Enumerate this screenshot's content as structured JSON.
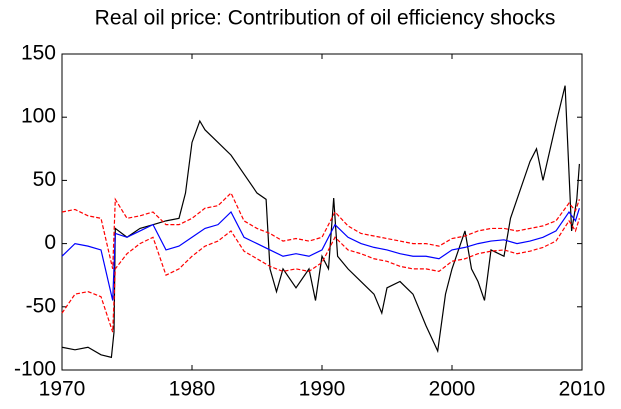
{
  "chart_data": {
    "type": "line",
    "title": "Real oil price: Contribution of oil efficiency shocks",
    "xlim": [
      1970,
      2010
    ],
    "xticks": [
      1970,
      1980,
      1990,
      2000,
      2010
    ],
    "ylim": [
      -100,
      150
    ],
    "yticks": [
      -100,
      -50,
      0,
      50,
      100,
      150
    ],
    "series": [
      {
        "color": "#000000",
        "dash": "solid",
        "x": [
          1970,
          1971,
          1972,
          1973,
          1973.8,
          1974,
          1974.1,
          1975,
          1976,
          1977,
          1978,
          1979,
          1979.5,
          1980,
          1980.6,
          1981,
          1982,
          1983,
          1984,
          1985,
          1985.7,
          1986,
          1986.5,
          1987,
          1988,
          1989,
          1989.5,
          1990,
          1990.5,
          1990.9,
          1991.2,
          1992,
          1993,
          1994,
          1994.6,
          1995,
          1996,
          1997,
          1998,
          1998.9,
          1999.5,
          2000,
          2001,
          2001.5,
          2002,
          2002.5,
          2003,
          2004,
          2004.5,
          2005,
          2006,
          2006.5,
          2007,
          2008,
          2008.7,
          2009.2,
          2009.6,
          2009.8
        ],
        "values": [
          -82,
          -84,
          -82,
          -88,
          -90,
          -70,
          12,
          5,
          12,
          15,
          18,
          20,
          40,
          80,
          97,
          90,
          80,
          70,
          55,
          40,
          35,
          -20,
          -38,
          -20,
          -35,
          -20,
          -45,
          -10,
          -20,
          36,
          -10,
          -20,
          -30,
          -40,
          -55,
          -35,
          -30,
          -40,
          -65,
          -85,
          -40,
          -20,
          10,
          -20,
          -30,
          -45,
          -5,
          -10,
          20,
          35,
          65,
          75,
          50,
          95,
          125,
          10,
          35,
          63
        ]
      },
      {
        "color": "#0000ff",
        "dash": "solid",
        "x": [
          1970,
          1971,
          1972,
          1973,
          1973.9,
          1974.1,
          1975,
          1976,
          1977,
          1978,
          1979,
          1980,
          1981,
          1982,
          1983,
          1984,
          1985,
          1986,
          1987,
          1988,
          1989,
          1990,
          1991,
          1992,
          1993,
          1994,
          1995,
          1996,
          1997,
          1998,
          1999,
          2000,
          2001,
          2002,
          2003,
          2004,
          2005,
          2006,
          2007,
          2008,
          2009,
          2009.5,
          2009.8
        ],
        "values": [
          -10,
          0,
          -2,
          -5,
          -45,
          8,
          5,
          10,
          15,
          -5,
          -2,
          5,
          12,
          15,
          25,
          5,
          0,
          -5,
          -10,
          -8,
          -10,
          -5,
          15,
          5,
          0,
          -3,
          -5,
          -8,
          -10,
          -10,
          -12,
          -5,
          -3,
          0,
          2,
          3,
          0,
          2,
          5,
          10,
          25,
          18,
          28
        ]
      },
      {
        "color": "#ff0000",
        "dash": "dashed",
        "x": [
          1970,
          1971,
          1972,
          1973,
          1973.9,
          1974.1,
          1975,
          1976,
          1977,
          1978,
          1979,
          1980,
          1981,
          1982,
          1983,
          1984,
          1985,
          1986,
          1987,
          1988,
          1989,
          1990,
          1991,
          1992,
          1993,
          1994,
          1995,
          1996,
          1997,
          1998,
          1999,
          2000,
          2001,
          2002,
          2003,
          2004,
          2005,
          2006,
          2007,
          2008,
          2009,
          2009.5,
          2009.8
        ],
        "values": [
          25,
          27,
          22,
          20,
          -20,
          35,
          20,
          22,
          25,
          15,
          15,
          20,
          28,
          30,
          40,
          18,
          12,
          8,
          2,
          4,
          2,
          5,
          25,
          14,
          8,
          6,
          4,
          2,
          0,
          0,
          -2,
          4,
          6,
          10,
          12,
          12,
          10,
          12,
          14,
          18,
          32,
          26,
          35
        ]
      },
      {
        "color": "#ff0000",
        "dash": "dashed",
        "x": [
          1970,
          1971,
          1972,
          1973,
          1973.9,
          1974.1,
          1975,
          1976,
          1977,
          1978,
          1979,
          1980,
          1981,
          1982,
          1983,
          1984,
          1985,
          1986,
          1987,
          1988,
          1989,
          1990,
          1991,
          1992,
          1993,
          1994,
          1995,
          1996,
          1997,
          1998,
          1999,
          2000,
          2001,
          2002,
          2003,
          2004,
          2005,
          2006,
          2007,
          2008,
          2009,
          2009.5,
          2009.8
        ],
        "values": [
          -55,
          -40,
          -38,
          -42,
          -70,
          -20,
          -8,
          0,
          5,
          -25,
          -20,
          -10,
          -2,
          2,
          10,
          -6,
          -12,
          -18,
          -22,
          -20,
          -22,
          -15,
          5,
          -5,
          -8,
          -12,
          -14,
          -18,
          -20,
          -20,
          -22,
          -14,
          -12,
          -8,
          -6,
          -5,
          -8,
          -6,
          -3,
          2,
          18,
          10,
          20
        ]
      }
    ]
  }
}
